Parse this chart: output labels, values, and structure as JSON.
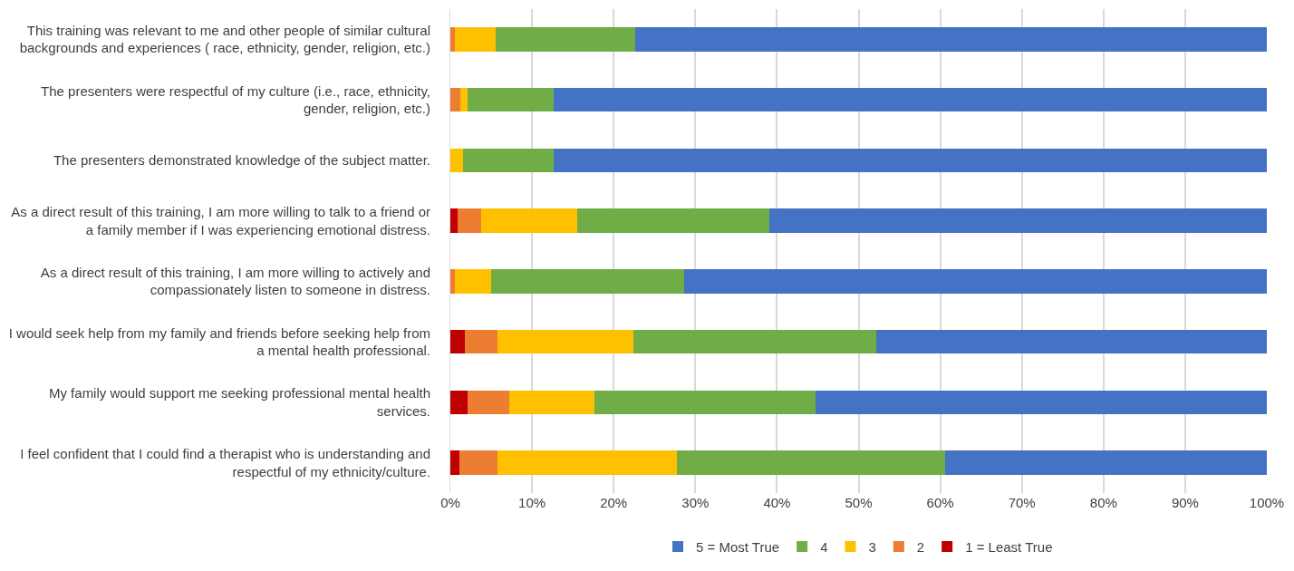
{
  "chart_data": {
    "type": "bar",
    "orientation": "horizontal",
    "stacked": true,
    "categories": [
      "This training was relevant to me and other people of similar cultural\nbackgrounds and experiences ( race, ethnicity, gender, religion, etc.)",
      "The presenters were respectful of my culture (i.e., race, ethnicity,\ngender, religion, etc.)",
      "The presenters demonstrated knowledge of the subject matter.",
      "As a direct result of this training, I am more willing to talk to a friend or\na family member if I was experiencing emotional distress.",
      "As a direct result of this training, I am more willing to actively and\ncompassionately listen to someone in distress.",
      "I would seek help from my family and friends before seeking help from\na mental health professional.",
      "My family would support me seeking professional mental health\nservices.",
      "I feel confident that I could find a therapist who is understanding and\nrespectful of my ethnicity/culture."
    ],
    "series": [
      {
        "name": "1 = Least True",
        "color": "#c00000",
        "values": [
          0,
          0,
          0,
          0.9,
          0,
          1.8,
          2.1,
          1.1
        ]
      },
      {
        "name": "2",
        "color": "#ed7d31",
        "values": [
          0.6,
          1.2,
          0,
          2.9,
          0.6,
          4.0,
          5.1,
          4.7
        ]
      },
      {
        "name": "3",
        "color": "#ffc000",
        "values": [
          4.9,
          0.9,
          1.5,
          11.7,
          4.4,
          16.6,
          10.5,
          22.0
        ]
      },
      {
        "name": "4",
        "color": "#70ad47",
        "values": [
          17.1,
          10.5,
          11.1,
          23.6,
          23.6,
          29.8,
          27.0,
          32.8
        ]
      },
      {
        "name": "5 = Most True",
        "color": "#4472c4",
        "values": [
          77.4,
          87.4,
          87.4,
          60.9,
          71.4,
          47.8,
          55.3,
          39.4
        ]
      }
    ],
    "xlim": [
      0,
      100
    ],
    "xticks": [
      {
        "value": 0,
        "label": "0%"
      },
      {
        "value": 10,
        "label": "10%"
      },
      {
        "value": 20,
        "label": "20%"
      },
      {
        "value": 30,
        "label": "30%"
      },
      {
        "value": 40,
        "label": "40%"
      },
      {
        "value": 50,
        "label": "50%"
      },
      {
        "value": 60,
        "label": "60%"
      },
      {
        "value": 70,
        "label": "70%"
      },
      {
        "value": 80,
        "label": "80%"
      },
      {
        "value": 90,
        "label": "90%"
      },
      {
        "value": 100,
        "label": "100%"
      }
    ],
    "grid": "x",
    "legend": "bottom"
  }
}
